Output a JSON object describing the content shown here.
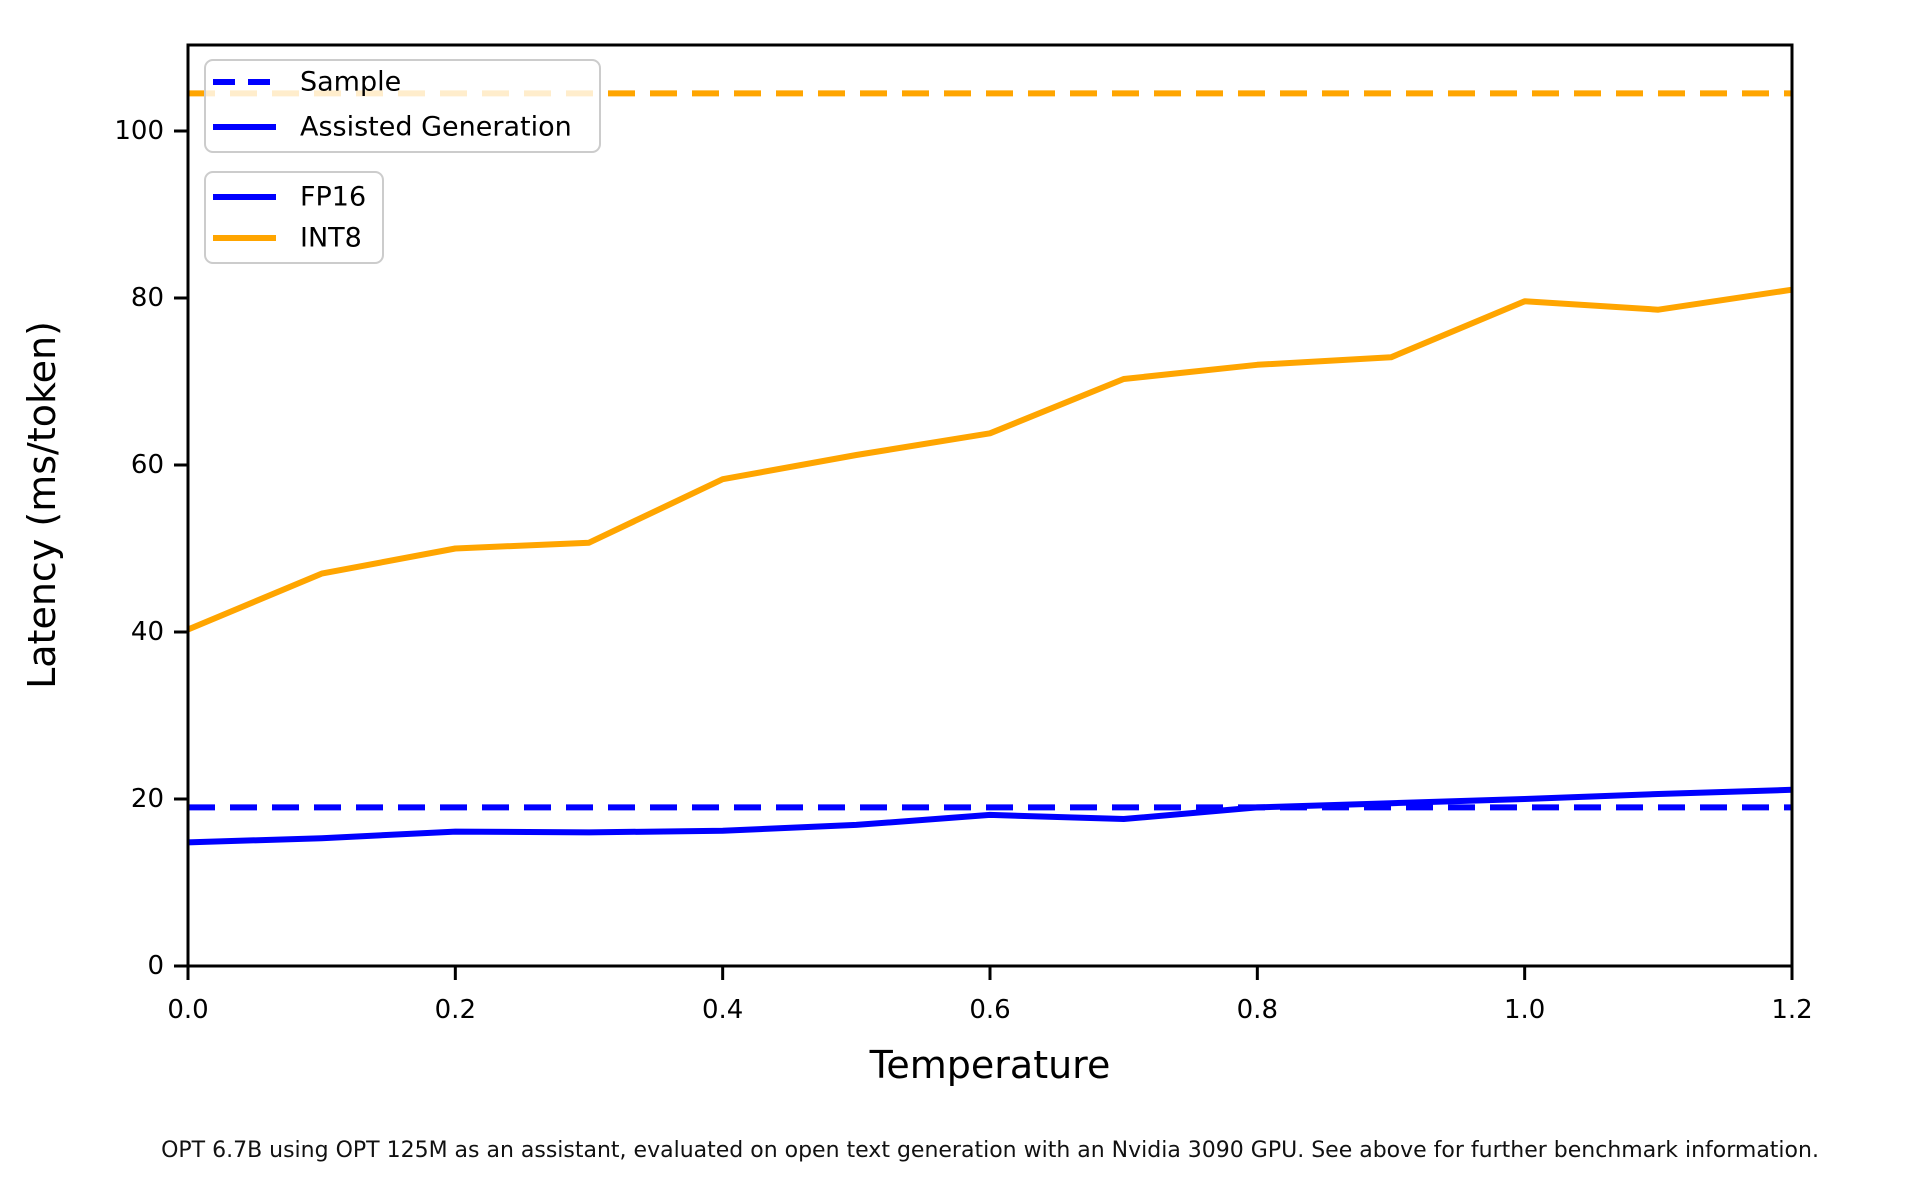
{
  "figure": {
    "caption": "OPT 6.7B using OPT 125M as an assistant, evaluated on open text generation with an Nvidia 3090 GPU. See above for further benchmark information."
  },
  "chart_data": {
    "type": "line",
    "title": "",
    "xlabel": "Temperature",
    "ylabel": "Latency (ms/token)",
    "xlim": [
      0.0,
      1.2
    ],
    "ylim": [
      0,
      110.3
    ],
    "grid": false,
    "x_ticks": [
      0.0,
      0.2,
      0.4,
      0.6,
      0.8,
      1.0,
      1.2
    ],
    "x_tick_labels": [
      "0.0",
      "0.2",
      "0.4",
      "0.6",
      "0.8",
      "1.0",
      "1.2"
    ],
    "y_ticks": [
      0,
      20,
      40,
      60,
      80,
      100
    ],
    "y_tick_labels": [
      "0",
      "20",
      "40",
      "60",
      "80",
      "100"
    ],
    "x": [
      0.0,
      0.1,
      0.2,
      0.3,
      0.4,
      0.5,
      0.6,
      0.7,
      0.8,
      0.9,
      1.0,
      1.1,
      1.2
    ],
    "series": [
      {
        "name": "Sample INT8",
        "color": "#ffa500",
        "style": "dashed",
        "values": [
          104.5,
          104.5,
          104.5,
          104.5,
          104.5,
          104.5,
          104.5,
          104.5,
          104.5,
          104.5,
          104.5,
          104.5,
          104.5
        ]
      },
      {
        "name": "Sample FP16",
        "color": "#0000ff",
        "style": "dashed",
        "values": [
          19.0,
          19.0,
          19.0,
          19.0,
          19.0,
          19.0,
          19.0,
          19.0,
          19.0,
          19.0,
          19.0,
          19.0,
          19.0
        ]
      },
      {
        "name": "Assisted Generation INT8",
        "color": "#ffa500",
        "style": "solid",
        "values": [
          40.3,
          47.0,
          50.0,
          50.7,
          58.3,
          61.2,
          63.8,
          70.3,
          72.0,
          72.9,
          79.6,
          78.6,
          81.0
        ]
      },
      {
        "name": "Assisted Generation FP16",
        "color": "#0000ff",
        "style": "solid",
        "values": [
          14.8,
          15.3,
          16.1,
          16.0,
          16.2,
          16.9,
          18.1,
          17.6,
          19.0,
          19.5,
          20.0,
          20.6,
          21.1
        ]
      }
    ],
    "legends": [
      {
        "entries": [
          {
            "label": "Sample",
            "color": "#0000ff",
            "style": "dashed"
          },
          {
            "label": "Assisted Generation",
            "color": "#0000ff",
            "style": "solid"
          }
        ]
      },
      {
        "entries": [
          {
            "label": "FP16",
            "color": "#0000ff",
            "style": "solid"
          },
          {
            "label": "INT8",
            "color": "#ffa500",
            "style": "solid"
          }
        ]
      }
    ]
  }
}
